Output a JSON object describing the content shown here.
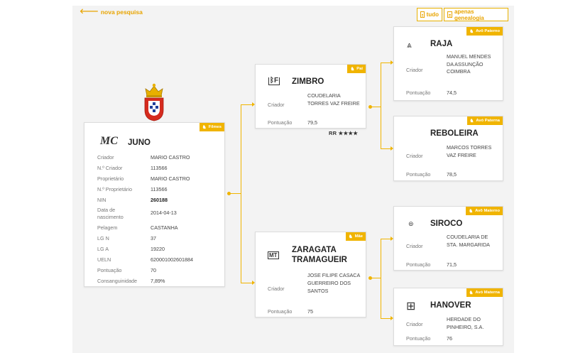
{
  "nav": {
    "back_label": "nova pesquisa"
  },
  "toolbar": {
    "tudo_label": "tudo",
    "genealogia_label": "apenas genealogia"
  },
  "accent_color": "#f0b400",
  "subject": {
    "badge": "Filmes",
    "name": "JUNO",
    "logo_text": "MC",
    "fields": [
      {
        "k": "Criador",
        "v": "MARIO CASTRO"
      },
      {
        "k": "N.º Criador",
        "v": "113566"
      },
      {
        "k": "Proprietário",
        "v": "MARIO CASTRO"
      },
      {
        "k": "N.º Proprietário",
        "v": "113566"
      },
      {
        "k": "NIN",
        "v": "260188"
      },
      {
        "k": "Data de nascimento",
        "v": "2014-04-13"
      },
      {
        "k": "Pelagem",
        "v": "CASTANHA"
      },
      {
        "k": "LG N",
        "v": "37"
      },
      {
        "k": "LG A",
        "v": "19220"
      },
      {
        "k": "UELN",
        "v": "620001002601884"
      },
      {
        "k": "Pontuação",
        "v": "70"
      },
      {
        "k": "Consanguinidade",
        "v": "7,89%"
      }
    ]
  },
  "pai": {
    "badge": "Pai",
    "name": "ZIMBRO",
    "logo_text": "ᛒF",
    "criador_label": "Criador",
    "criador": "COUDELARIA TORRES VAZ FREIRE",
    "pontuacao_label": "Pontuação",
    "pontuacao": "79,5",
    "rating": "RR ★★★★"
  },
  "mae": {
    "badge": "Mãe",
    "name": "ZARAGATA TRAMAGUEIR",
    "logo_text": "MT",
    "criador_label": "Criador",
    "criador": "JOSE FILIPE CASACA GUERREIRO DOS SANTOS",
    "pontuacao_label": "Pontuação",
    "pontuacao": "75"
  },
  "avo_pp": {
    "badge": "Avô Paterno",
    "name": "RAJA",
    "logo_text": "⩓",
    "criador_label": "Criador",
    "criador": "MANUEL MENDES DA ASSUNÇÃO COIMBRA",
    "pontuacao_label": "Pontuação",
    "pontuacao": "74,5"
  },
  "avo_pm": {
    "badge": "Avó Paterna",
    "name": "REBOLEIRA",
    "criador_label": "Criador",
    "criador": "MARCOS TORRES VAZ FREIRE",
    "pontuacao_label": "Pontuação",
    "pontuacao": "78,5"
  },
  "avo_mp": {
    "badge": "Avô Materno",
    "name": "SIROCO",
    "logo_text": "⊜",
    "criador_label": "Criador",
    "criador": "COUDELARIA DE STA. MARGARIDA",
    "pontuacao_label": "Pontuação",
    "pontuacao": "71,5"
  },
  "avo_mm": {
    "badge": "Avó Materna",
    "name": "HANOVER",
    "logo_text": "⊞",
    "criador_label": "Criador",
    "criador": "HERDADE DO PINHEIRO, S.A.",
    "pontuacao_label": "Pontuação",
    "pontuacao": "76"
  }
}
